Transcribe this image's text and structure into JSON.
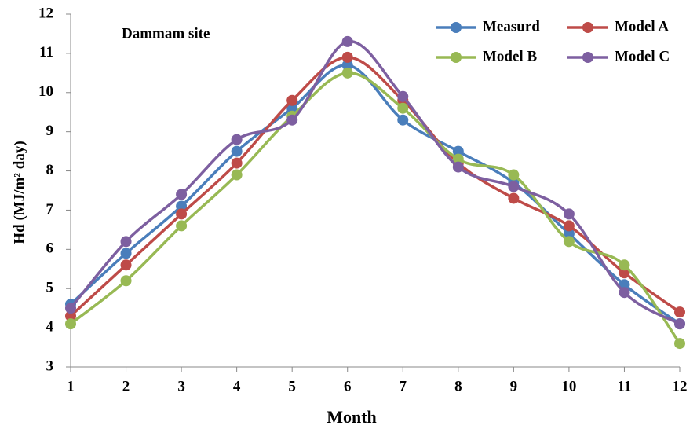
{
  "chart_data": {
    "type": "line",
    "annotation": "Dammam site",
    "x_label": "Month",
    "y_label": "Hd (MJ/m² day)",
    "x": [
      1,
      2,
      3,
      4,
      5,
      6,
      7,
      8,
      9,
      10,
      11,
      12
    ],
    "xlim": [
      1,
      12
    ],
    "xticks": [
      1,
      2,
      3,
      4,
      5,
      6,
      7,
      8,
      9,
      10,
      11,
      12
    ],
    "ylim": [
      3,
      12
    ],
    "yticks": [
      3,
      4,
      5,
      6,
      7,
      8,
      9,
      10,
      11,
      12
    ],
    "grid": false,
    "smooth": true,
    "legend": "top-right",
    "series": [
      {
        "name": "Measurd",
        "color": "#4a7ebb",
        "values": [
          4.6,
          5.9,
          7.1,
          8.5,
          9.6,
          10.7,
          9.3,
          8.5,
          7.7,
          6.4,
          5.1,
          4.1
        ]
      },
      {
        "name": "Model A",
        "color": "#be4b48",
        "values": [
          4.3,
          5.6,
          6.9,
          8.2,
          9.8,
          10.9,
          9.8,
          8.2,
          7.3,
          6.6,
          5.4,
          4.4
        ]
      },
      {
        "name": "Model B",
        "color": "#98b954",
        "values": [
          4.1,
          5.2,
          6.6,
          7.9,
          9.4,
          10.5,
          9.6,
          8.3,
          7.9,
          6.2,
          5.6,
          3.6
        ]
      },
      {
        "name": "Model C",
        "color": "#7d5fa0",
        "values": [
          4.5,
          6.2,
          7.4,
          8.8,
          9.3,
          11.3,
          9.9,
          8.1,
          7.6,
          6.9,
          4.9,
          4.1
        ]
      }
    ]
  }
}
